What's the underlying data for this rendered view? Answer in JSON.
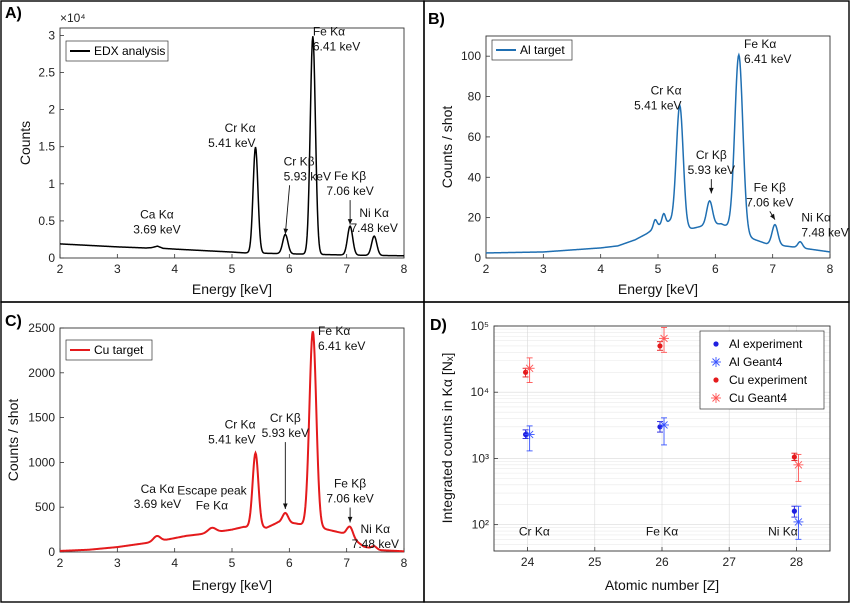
{
  "chart_data": [
    {
      "panel": "A)",
      "type": "line",
      "xlabel": "Energy [keV]",
      "ylabel": "Counts",
      "exponent_label": "×10⁴",
      "xlim": [
        2,
        8
      ],
      "ylim": [
        0,
        3.1
      ],
      "xticks": [
        2,
        3,
        4,
        5,
        6,
        7,
        8
      ],
      "yticks": [
        0,
        0.5,
        1,
        1.5,
        2,
        2.5,
        3
      ],
      "grid": false,
      "legend_position": "top-left",
      "series": [
        {
          "name": "EDX analysis",
          "color": "#000000",
          "baseline": [
            [
              2,
              0.19
            ],
            [
              2.5,
              0.17
            ],
            [
              3,
              0.15
            ],
            [
              3.5,
              0.135
            ],
            [
              3.6,
              0.14
            ],
            [
              3.7,
              0.16
            ],
            [
              3.8,
              0.13
            ],
            [
              4,
              0.12
            ],
            [
              4.5,
              0.1
            ],
            [
              5,
              0.08
            ],
            [
              5.2,
              0.07
            ],
            [
              7,
              0.04
            ],
            [
              8,
              0.03
            ]
          ],
          "peaks": [
            [
              5.41,
              1.43,
              0.042
            ],
            [
              5.93,
              0.26,
              0.045
            ],
            [
              6.41,
              2.94,
              0.045
            ],
            [
              7.06,
              0.39,
              0.045
            ],
            [
              7.48,
              0.26,
              0.045
            ]
          ]
        }
      ],
      "annotations": [
        {
          "lines": [
            "Ca Kα",
            "3.69 keV"
          ],
          "x": 3.69,
          "y": 0.53,
          "anchor": "middle"
        },
        {
          "lines": [
            "Cr Kα",
            "5.41 keV"
          ],
          "x": 5.41,
          "y": 1.7,
          "anchor": "end"
        },
        {
          "lines": [
            "Cr Kβ",
            "5.93 keV"
          ],
          "x": 5.9,
          "y": 1.25,
          "anchor": "start",
          "arrow_to": [
            5.93,
            0.32
          ]
        },
        {
          "lines": [
            "Fe Kα",
            "6.41 keV"
          ],
          "x": 6.41,
          "y": 3.0,
          "anchor": "start"
        },
        {
          "lines": [
            "Fe Kβ",
            "7.06 keV"
          ],
          "x": 7.06,
          "y": 1.05,
          "anchor": "middle",
          "arrow_to": [
            7.06,
            0.45
          ]
        },
        {
          "lines": [
            "Ni Kα",
            "7.48 keV"
          ],
          "x": 7.48,
          "y": 0.55,
          "anchor": "middle"
        }
      ]
    },
    {
      "panel": "B)",
      "type": "line",
      "xlabel": "Energy [keV]",
      "ylabel": "Counts / shot",
      "xlim": [
        2,
        8
      ],
      "ylim": [
        0,
        110
      ],
      "xticks": [
        2,
        3,
        4,
        5,
        6,
        7,
        8
      ],
      "yticks": [
        0,
        20,
        40,
        60,
        80,
        100
      ],
      "grid": false,
      "legend_position": "top-left",
      "series": [
        {
          "name": "Al target",
          "color": "#1f6fb2",
          "baseline": [
            [
              2,
              2.5
            ],
            [
              3,
              3
            ],
            [
              3.5,
              4
            ],
            [
              4,
              5
            ],
            [
              4.3,
              6
            ],
            [
              4.6,
              9
            ],
            [
              4.8,
              12
            ],
            [
              5,
              16
            ],
            [
              5.2,
              18
            ],
            [
              5.5,
              14
            ],
            [
              5.8,
              16
            ],
            [
              6.1,
              17
            ],
            [
              6.6,
              10
            ],
            [
              6.9,
              7
            ],
            [
              7.5,
              5
            ],
            [
              8,
              3
            ]
          ],
          "peaks": [
            [
              5.38,
              60,
              0.06
            ],
            [
              5.9,
              12,
              0.05
            ],
            [
              6.41,
              88,
              0.07
            ],
            [
              7.04,
              10,
              0.05
            ],
            [
              7.48,
              3,
              0.04
            ],
            [
              4.95,
              4,
              0.03
            ],
            [
              5.1,
              5,
              0.03
            ]
          ]
        }
      ],
      "annotations": [
        {
          "lines": [
            "Cr Kα",
            "5.41 keV"
          ],
          "x": 5.41,
          "y": 81,
          "anchor": "end"
        },
        {
          "lines": [
            "Cr Kβ",
            "5.93 keV"
          ],
          "x": 5.93,
          "y": 49,
          "anchor": "middle",
          "arrow_to": [
            5.93,
            32
          ]
        },
        {
          "lines": [
            "Fe Kα",
            "6.41 keV"
          ],
          "x": 6.5,
          "y": 104,
          "anchor": "start"
        },
        {
          "lines": [
            "Fe Kβ",
            "7.06 keV"
          ],
          "x": 6.95,
          "y": 33,
          "anchor": "middle",
          "arrow_to": [
            7.04,
            19
          ]
        },
        {
          "lines": [
            "Ni Kα",
            "7.48 keV"
          ],
          "x": 7.5,
          "y": 18,
          "anchor": "start"
        }
      ]
    },
    {
      "panel": "C)",
      "type": "line",
      "xlabel": "Energy [keV]",
      "ylabel": "Counts / shot",
      "xlim": [
        2,
        8
      ],
      "ylim": [
        0,
        2500
      ],
      "xticks": [
        2,
        3,
        4,
        5,
        6,
        7,
        8
      ],
      "yticks": [
        0,
        500,
        1000,
        1500,
        2000,
        2500
      ],
      "grid": false,
      "legend_position": "top-left",
      "series": [
        {
          "name": "Cu target",
          "color": "#e41a1c",
          "baseline": [
            [
              2,
              12
            ],
            [
              2.5,
              25
            ],
            [
              3,
              55
            ],
            [
              3.5,
              100
            ],
            [
              3.8,
              130
            ],
            [
              4.2,
              180
            ],
            [
              4.6,
              210
            ],
            [
              5,
              250
            ],
            [
              5.2,
              280
            ],
            [
              5.6,
              270
            ],
            [
              5.8,
              330
            ],
            [
              6.1,
              320
            ],
            [
              6.6,
              260
            ],
            [
              7,
              200
            ],
            [
              7.3,
              60
            ],
            [
              7.6,
              20
            ],
            [
              8,
              8
            ]
          ],
          "peaks": [
            [
              3.69,
              60,
              0.06
            ],
            [
              4.65,
              55,
              0.07
            ],
            [
              5.41,
              830,
              0.05
            ],
            [
              5.93,
              110,
              0.05
            ],
            [
              6.41,
              2180,
              0.06
            ],
            [
              7.06,
              110,
              0.05
            ],
            [
              7.48,
              30,
              0.04
            ]
          ]
        }
      ],
      "annotations": [
        {
          "lines": [
            "Ca Kα",
            "3.69 keV"
          ],
          "x": 3.7,
          "y": 660,
          "anchor": "middle"
        },
        {
          "lines": [
            "Escape peak",
            "Fe Kα"
          ],
          "x": 4.65,
          "y": 640,
          "anchor": "middle"
        },
        {
          "lines": [
            "Cr Kα",
            "5.41 keV"
          ],
          "x": 5.41,
          "y": 1380,
          "anchor": "end"
        },
        {
          "lines": [
            "Cr Kβ",
            "5.93 keV"
          ],
          "x": 5.93,
          "y": 1450,
          "anchor": "middle",
          "arrow_to": [
            5.93,
            480
          ]
        },
        {
          "lines": [
            "Fe Kα",
            "6.41 keV"
          ],
          "x": 6.5,
          "y": 2420,
          "anchor": "start"
        },
        {
          "lines": [
            "Fe Kβ",
            "7.06 keV"
          ],
          "x": 7.06,
          "y": 720,
          "anchor": "middle",
          "arrow_to": [
            7.06,
            330
          ]
        },
        {
          "lines": [
            "Ni Kα",
            "7.48 keV"
          ],
          "x": 7.5,
          "y": 210,
          "anchor": "middle"
        }
      ]
    },
    {
      "panel": "D)",
      "type": "scatter",
      "xlabel": "Atomic number [Z]",
      "ylabel": "Integrated counts in Kα [Nₓ]",
      "yscale": "log",
      "xlim": [
        23.5,
        28.5
      ],
      "ylim": [
        40,
        100000
      ],
      "xticks": [
        24,
        25,
        26,
        27,
        28
      ],
      "yticks": [
        100,
        1000,
        10000,
        100000
      ],
      "ytick_labels": [
        "10²",
        "10³",
        "10⁴",
        "10⁵"
      ],
      "grid": true,
      "legend_position": "top-right",
      "series": [
        {
          "name": "Al experiment",
          "color": "#1f1fe0",
          "marker": "dot",
          "points": [
            [
              24,
              2300,
              2000,
              2700
            ],
            [
              26,
              3000,
              2500,
              3600
            ],
            [
              28,
              160,
              130,
              190
            ]
          ]
        },
        {
          "name": "Al Geant4",
          "color": "#3a55ff",
          "marker": "star",
          "points": [
            [
              24,
              2300,
              1300,
              3100
            ],
            [
              26,
              3200,
              1600,
              4100
            ],
            [
              28,
              110,
              60,
              190
            ]
          ]
        },
        {
          "name": "Cu experiment",
          "color": "#e41a1c",
          "marker": "dot",
          "points": [
            [
              24,
              20000,
              17000,
              23000
            ],
            [
              26,
              50000,
              43000,
              58000
            ],
            [
              28,
              1050,
              930,
              1200
            ]
          ]
        },
        {
          "name": "Cu Geant4",
          "color": "#ff5555",
          "marker": "star",
          "points": [
            [
              24,
              23000,
              14000,
              33000
            ],
            [
              26,
              65000,
              40000,
              95000
            ],
            [
              28,
              800,
              450,
              1150
            ]
          ]
        }
      ],
      "annotations": [
        {
          "lines": [
            "Cr Kα"
          ],
          "x": 24.1,
          "y": 68,
          "anchor": "middle"
        },
        {
          "lines": [
            "Fe Kα"
          ],
          "x": 26.0,
          "y": 68,
          "anchor": "middle"
        },
        {
          "lines": [
            "Ni Kα"
          ],
          "x": 27.8,
          "y": 68,
          "anchor": "middle"
        }
      ]
    }
  ]
}
